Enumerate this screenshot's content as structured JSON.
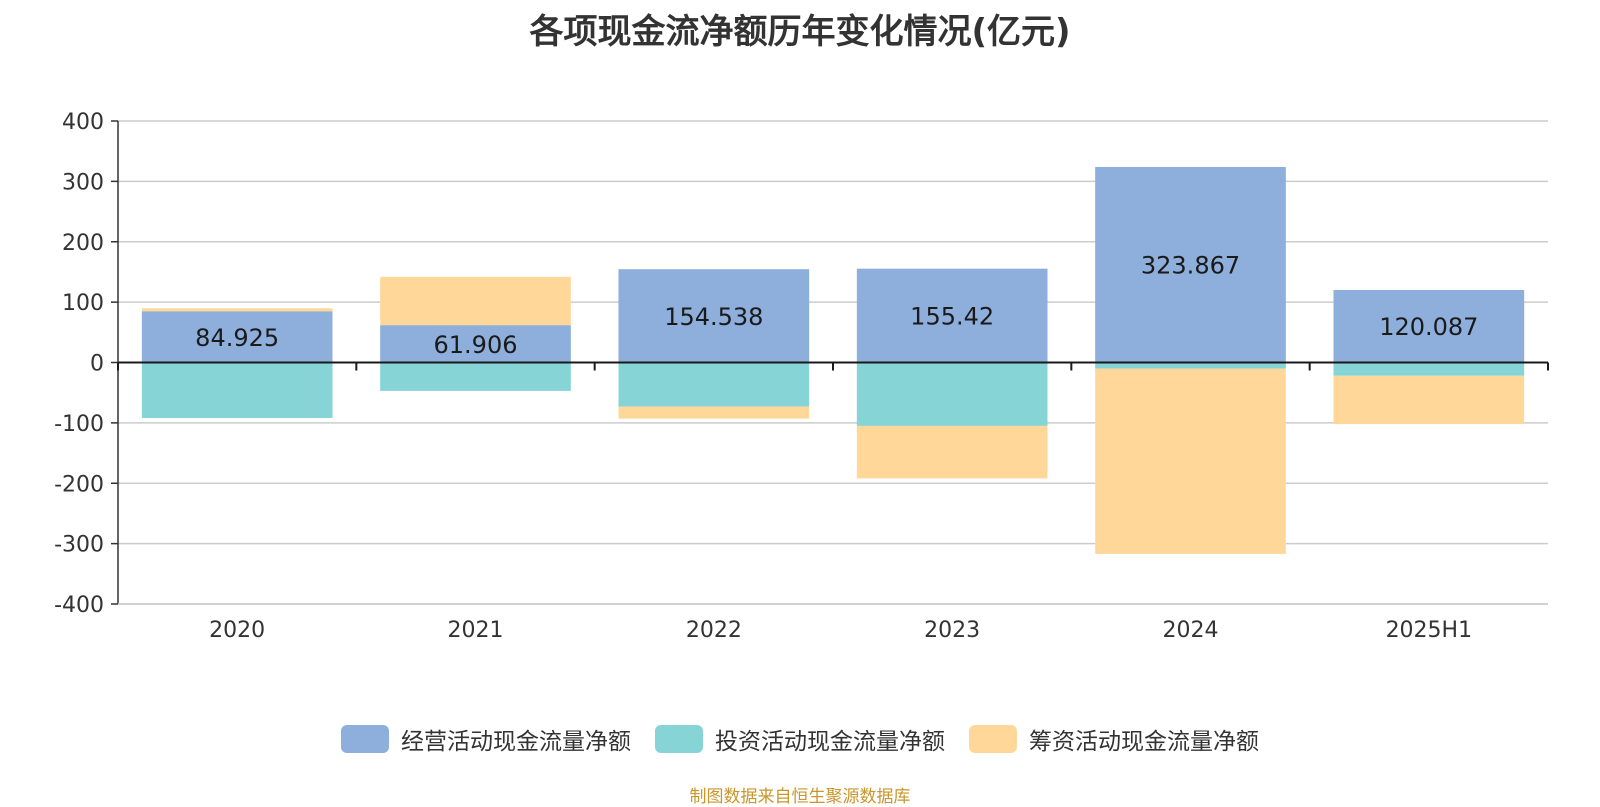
{
  "chart_data": {
    "type": "bar",
    "stacked": true,
    "title": "各项现金流净额历年变化情况(亿元)",
    "xlabel": "",
    "ylabel": "",
    "ylim": [
      -400,
      400
    ],
    "yticks": [
      400,
      300,
      200,
      100,
      0,
      -100,
      -200,
      -300,
      -400
    ],
    "grid": true,
    "legend_position": "bottom",
    "categories": [
      "2020",
      "2021",
      "2022",
      "2023",
      "2024",
      "2025H1"
    ],
    "series": [
      {
        "name": "经营活动现金流量净额",
        "color": "#8eaedb",
        "values": [
          84.925,
          61.906,
          154.538,
          155.42,
          323.867,
          120.087
        ]
      },
      {
        "name": "投资活动现金流量净额",
        "color": "#86d4d6",
        "values": [
          -92,
          -47,
          -73,
          -105,
          -10,
          -22
        ]
      },
      {
        "name": "筹资活动现金流量净额",
        "color": "#ffd899",
        "values": [
          5,
          80,
          -20,
          -87,
          -307,
          -80
        ]
      }
    ],
    "data_labels": [
      "84.925",
      "61.906",
      "154.538",
      "155.42",
      "323.867",
      "120.087"
    ]
  },
  "source_note": "制图数据来自恒生聚源数据库"
}
